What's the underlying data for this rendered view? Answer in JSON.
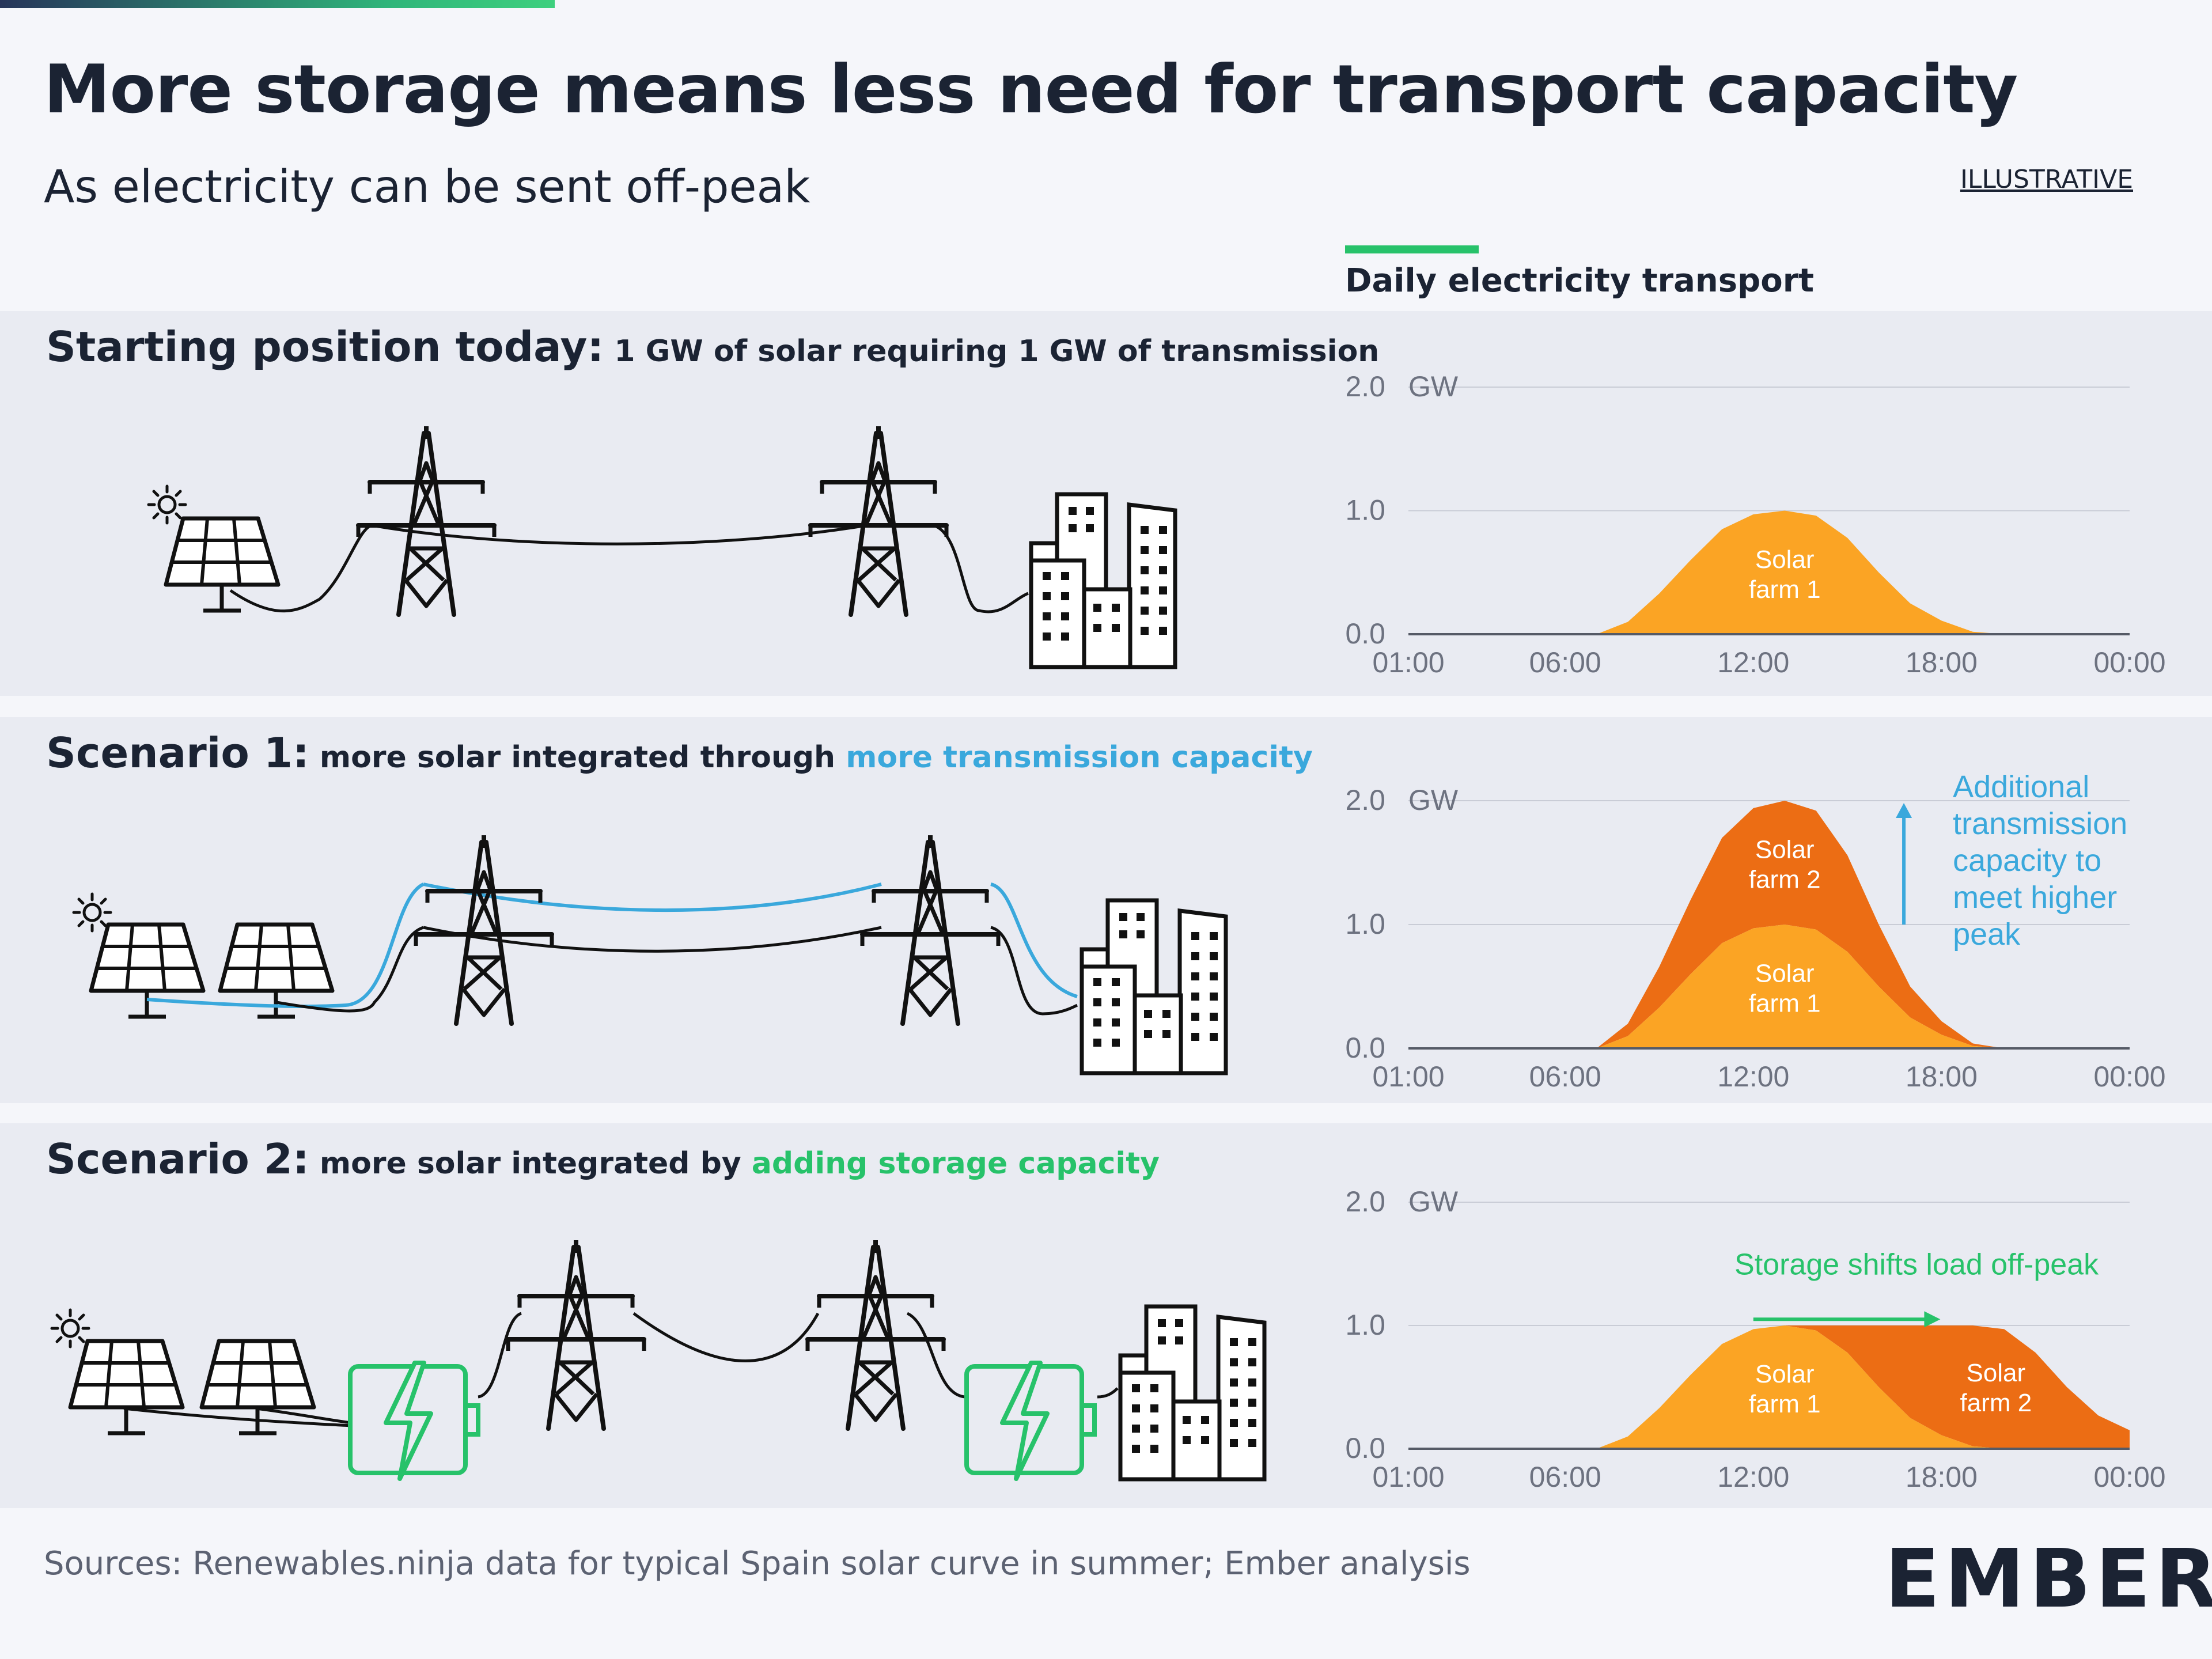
{
  "title": "More storage means less need for transport capacity",
  "subtitle": "As electricity can be sent off-peak",
  "tag": "ILLUSTRATIVE",
  "chart_header": "Daily electricity transport",
  "panels": [
    {
      "lead": "Starting position today:",
      "rest": " 1 GW of solar requiring 1 GW of transmission",
      "highlight": ""
    },
    {
      "lead": "Scenario 1:",
      "rest": " more solar integrated through ",
      "highlight": "more transmission capacity"
    },
    {
      "lead": "Scenario 2:",
      "rest": " more solar integrated by ",
      "highlight": "adding storage capacity"
    }
  ],
  "footer": "Sources: Renewables.ninja data for typical Spain solar curve in summer; Ember analysis",
  "logo": "EMBER",
  "colors": {
    "farm1": "#fba424",
    "farm2": "#ec6d14",
    "transmission_blue": "#3aa8dc",
    "storage_green": "#27c26a",
    "text_dark": "#1b2333",
    "axis_grey": "#6d7280"
  },
  "chart_data": [
    {
      "type": "area",
      "x_ticks": [
        "01:00",
        "06:00",
        "12:00",
        "18:00",
        "00:00"
      ],
      "x_tick_hours": [
        1,
        6,
        12,
        18,
        24
      ],
      "y_ticks": [
        "0.0",
        "1.0",
        "2.0"
      ],
      "y_unit": "GW",
      "ylim": [
        0,
        2
      ],
      "xlim": [
        1,
        24
      ],
      "x": [
        1,
        7,
        8,
        9,
        10,
        11,
        12,
        13,
        14,
        15,
        16,
        17,
        18,
        19,
        20,
        24
      ],
      "series": [
        {
          "name": "Solar farm 1",
          "label": [
            "Solar",
            "farm 1"
          ],
          "values": [
            0,
            0,
            0.1,
            0.33,
            0.6,
            0.85,
            0.97,
            1.0,
            0.96,
            0.78,
            0.5,
            0.25,
            0.11,
            0.02,
            0,
            0
          ]
        }
      ],
      "annotations": []
    },
    {
      "type": "area",
      "stacked": true,
      "x_ticks": [
        "01:00",
        "06:00",
        "12:00",
        "18:00",
        "00:00"
      ],
      "x_tick_hours": [
        1,
        6,
        12,
        18,
        24
      ],
      "y_ticks": [
        "0.0",
        "1.0",
        "2.0"
      ],
      "y_unit": "GW",
      "ylim": [
        0,
        2
      ],
      "xlim": [
        1,
        24
      ],
      "x": [
        1,
        7,
        8,
        9,
        10,
        11,
        12,
        13,
        14,
        15,
        16,
        17,
        18,
        19,
        20,
        24
      ],
      "series": [
        {
          "name": "Solar farm 1",
          "label": [
            "Solar",
            "farm 1"
          ],
          "values": [
            0,
            0,
            0.1,
            0.33,
            0.6,
            0.85,
            0.97,
            1.0,
            0.96,
            0.78,
            0.5,
            0.25,
            0.11,
            0.02,
            0,
            0
          ]
        },
        {
          "name": "Solar farm 2",
          "label": [
            "Solar",
            "farm 2"
          ],
          "values": [
            0,
            0,
            0.1,
            0.33,
            0.6,
            0.85,
            0.97,
            1.0,
            0.96,
            0.78,
            0.5,
            0.25,
            0.11,
            0.02,
            0,
            0
          ]
        }
      ],
      "annotations": [
        {
          "text": [
            "Additional",
            "transmission",
            "capacity to",
            "meet higher",
            "peak"
          ],
          "color": "#3aa8dc",
          "arrow": "up",
          "from_y": 1.0,
          "to_y": 2.0,
          "at_x": 16.8
        }
      ]
    },
    {
      "type": "area",
      "stacked": true,
      "x_ticks": [
        "01:00",
        "06:00",
        "12:00",
        "18:00",
        "00:00"
      ],
      "x_tick_hours": [
        1,
        6,
        12,
        18,
        24
      ],
      "y_ticks": [
        "0.0",
        "1.0",
        "2.0"
      ],
      "y_unit": "GW",
      "ylim": [
        0,
        2
      ],
      "xlim": [
        1,
        24
      ],
      "x": [
        1,
        7,
        8,
        9,
        10,
        11,
        12,
        13,
        14,
        15,
        16,
        17,
        18,
        19,
        20,
        21,
        22,
        23,
        24
      ],
      "series": [
        {
          "name": "Solar farm 1",
          "label": [
            "Solar",
            "farm 1"
          ],
          "values": [
            0,
            0,
            0.1,
            0.33,
            0.6,
            0.85,
            0.97,
            1.0,
            0.96,
            0.78,
            0.5,
            0.25,
            0.11,
            0.02,
            0,
            0,
            0,
            0,
            0
          ]
        },
        {
          "name": "Solar farm 2",
          "label": [
            "Solar",
            "farm 2"
          ],
          "values": [
            0,
            0,
            0,
            0,
            0,
            0,
            0,
            0,
            0.04,
            0.22,
            0.5,
            0.75,
            0.89,
            0.98,
            0.97,
            0.78,
            0.5,
            0.27,
            0.15
          ]
        }
      ],
      "annotations": [
        {
          "text": [
            "Storage shifts load off-peak"
          ],
          "color": "#27c26a",
          "arrow": "right",
          "from_x": 12,
          "to_x": 18,
          "at_y": 1.05
        }
      ]
    }
  ]
}
